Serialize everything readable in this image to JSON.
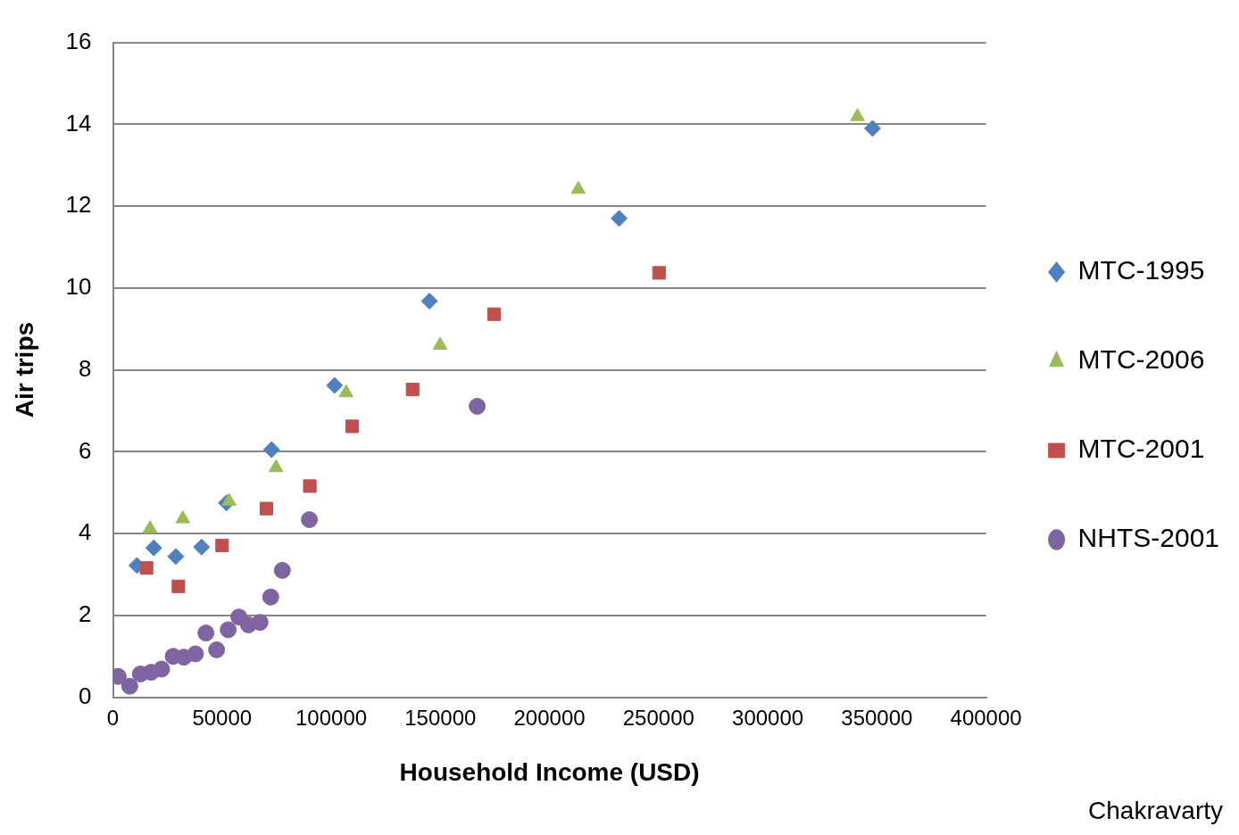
{
  "chart_data": {
    "type": "scatter",
    "xlabel": "Household Income (USD)",
    "ylabel": "Air trips",
    "xlim": [
      0,
      400000
    ],
    "xticks": [
      0,
      50000,
      100000,
      150000,
      200000,
      250000,
      300000,
      350000,
      400000
    ],
    "ylim": [
      0,
      16
    ],
    "yticks": [
      0,
      2,
      4,
      6,
      8,
      10,
      12,
      14,
      16
    ],
    "grid": "y",
    "legend": "right",
    "annotations": [
      "Chakravarty"
    ],
    "series": [
      {
        "name": "MTC-1995",
        "color": "#4f81bd",
        "marker": "diamond",
        "x": [
          11000,
          18700,
          28800,
          40600,
          52000,
          72700,
          101500,
          145000,
          231900,
          348000
        ],
        "values": [
          3.22,
          3.65,
          3.44,
          3.67,
          4.75,
          6.05,
          7.62,
          9.68,
          11.7,
          13.9
        ]
      },
      {
        "name": "MTC-2006",
        "color": "#9bbb59",
        "marker": "triangle",
        "x": [
          17000,
          32000,
          53200,
          74700,
          106800,
          149900,
          213200,
          341100
        ],
        "values": [
          4.12,
          4.36,
          4.79,
          5.61,
          7.44,
          8.6,
          12.41,
          14.19
        ]
      },
      {
        "name": "MTC-2001",
        "color": "#c0504d",
        "marker": "square",
        "x": [
          15400,
          30000,
          50000,
          70300,
          90200,
          109600,
          137300,
          174600,
          250200
        ],
        "values": [
          3.16,
          2.71,
          3.71,
          4.61,
          5.16,
          6.62,
          7.52,
          9.36,
          10.37
        ]
      },
      {
        "name": "NHTS-2001",
        "color": "#8064a2",
        "marker": "circle",
        "x": [
          2400,
          7700,
          12600,
          17500,
          22300,
          27600,
          32500,
          37800,
          42600,
          47500,
          52800,
          57700,
          62100,
          67400,
          72300,
          77600,
          90000,
          166900
        ],
        "values": [
          0.51,
          0.27,
          0.57,
          0.61,
          0.69,
          1.0,
          0.98,
          1.06,
          1.57,
          1.16,
          1.65,
          1.96,
          1.77,
          1.83,
          2.45,
          3.1,
          4.34,
          7.11
        ]
      }
    ]
  }
}
